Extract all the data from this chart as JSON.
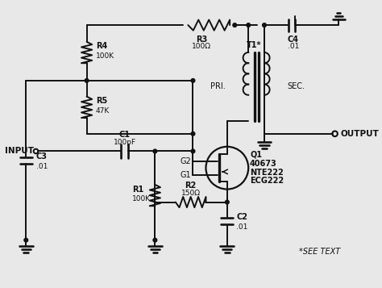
{
  "bg_color": "#e8e8e8",
  "line_color": "#111111",
  "lw": 1.4,
  "fig_w": 4.74,
  "fig_h": 3.57,
  "components": {
    "R4": {
      "label": "R4",
      "value": "100K"
    },
    "R5": {
      "label": "R5",
      "value": "47K"
    },
    "R3": {
      "label": "R3",
      "value": "100Ω"
    },
    "R1": {
      "label": "R1",
      "value": "100K"
    },
    "R2": {
      "label": "R2",
      "value": "150Ω"
    },
    "C3": {
      "label": "C3",
      "value": ".01"
    },
    "C4": {
      "label": "C4",
      "value": ".01"
    },
    "C1": {
      "label": "C1",
      "value": "100pF"
    },
    "C2": {
      "label": "C2",
      "value": ".01"
    },
    "T1": {
      "label": "T1*"
    },
    "Q1": {
      "label": "Q1",
      "model1": "40673",
      "model2": "NTE222",
      "model3": "ECG222"
    },
    "see_text": "*SEE TEXT",
    "input_label": "INPUT",
    "output_label": "OUTPUT",
    "pri_label": "PRI.",
    "sec_label": "SEC."
  }
}
